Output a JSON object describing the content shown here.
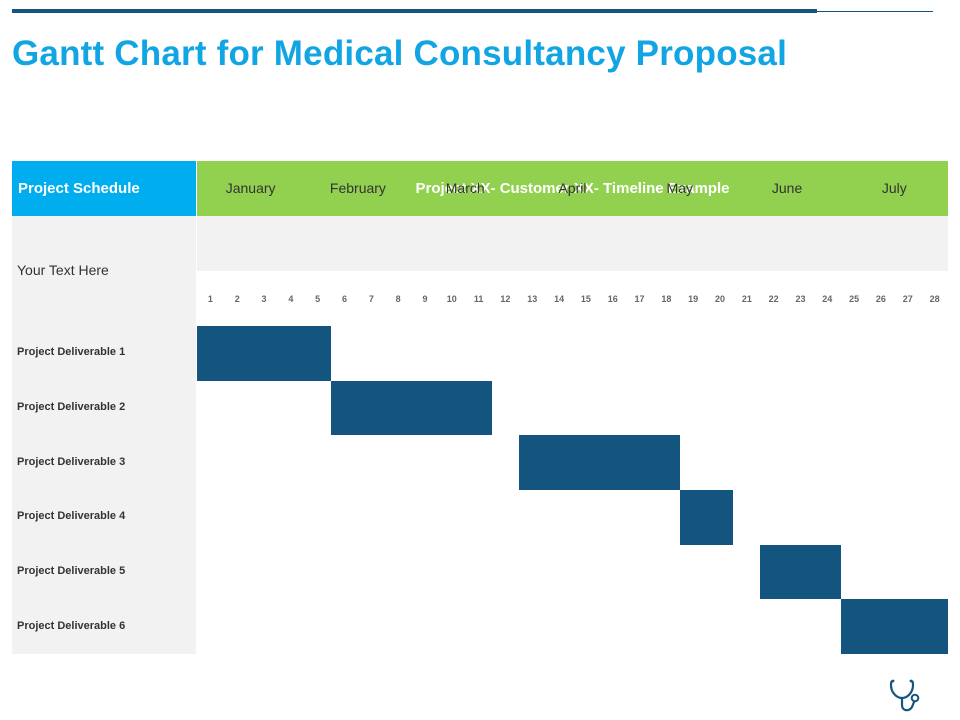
{
  "title": "Gantt Chart for Medical Consultancy Proposal",
  "chart_data": {
    "type": "gantt",
    "header_left": "Project Schedule",
    "header_right": "Project XX- Customer XX- Timeline Example",
    "left_text": "Your Text Here",
    "months": [
      "January",
      "February",
      "March",
      "April",
      "May",
      "June",
      "July"
    ],
    "days": [
      "1",
      "2",
      "3",
      "4",
      "5",
      "6",
      "7",
      "8",
      "9",
      "10",
      "11",
      "12",
      "13",
      "14",
      "15",
      "16",
      "17",
      "18",
      "19",
      "20",
      "21",
      "22",
      "23",
      "24",
      "25",
      "26",
      "27",
      "28"
    ],
    "tasks": [
      {
        "name": "Project Deliverable 1",
        "start": 1,
        "end": 5
      },
      {
        "name": "Project Deliverable 2",
        "start": 6,
        "end": 11
      },
      {
        "name": "Project Deliverable 3",
        "start": 13,
        "end": 18
      },
      {
        "name": "Project Deliverable 4",
        "start": 19,
        "end": 20
      },
      {
        "name": "Project Deliverable 5",
        "start": 22,
        "end": 24
      },
      {
        "name": "Project Deliverable 6",
        "start": 25,
        "end": 28
      }
    ],
    "colors": {
      "header_left": "#00aeef",
      "header_right": "#92d050",
      "bar": "#14557f",
      "title": "#12a5e3"
    }
  },
  "icon": "stethoscope-icon"
}
